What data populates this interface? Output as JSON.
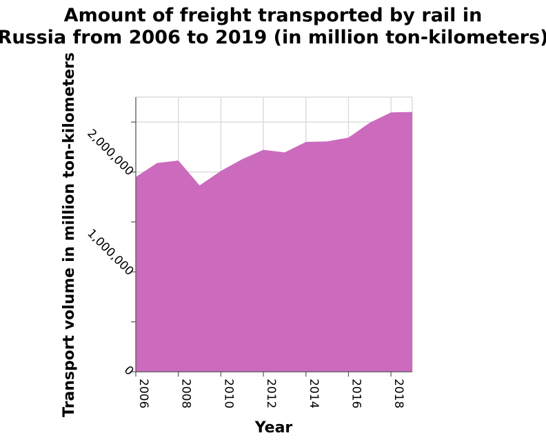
{
  "chart_data": {
    "type": "area",
    "title_lines": [
      "Amount of freight transported by rail in",
      "Russia from 2006 to 2019 (in million ton-kilometers)"
    ],
    "xlabel": "Year",
    "ylabel": "Transport volume in million ton-kilometers",
    "x": [
      2006,
      2007,
      2008,
      2009,
      2010,
      2011,
      2012,
      2013,
      2014,
      2015,
      2016,
      2017,
      2018,
      2019
    ],
    "values": [
      1950000,
      2090000,
      2115000,
      1865000,
      2011000,
      2128000,
      2222000,
      2196000,
      2301000,
      2306000,
      2344000,
      2493000,
      2597000,
      2601000
    ],
    "xlim": [
      2006,
      2019
    ],
    "ylim": [
      0,
      2750000
    ],
    "x_ticks": [
      2006,
      2008,
      2010,
      2012,
      2014,
      2016,
      2018
    ],
    "x_tick_labels": [
      "2006",
      "2008",
      "2010",
      "2012",
      "2014",
      "2016",
      "2018"
    ],
    "y_ticks": [
      0,
      500000,
      1000000,
      1500000,
      2000000,
      2500000
    ],
    "y_tick_labels": [
      "0",
      "",
      "1,000,000",
      "",
      "2,000,000",
      ""
    ],
    "fill_color": "#cc6bbd",
    "grid": true,
    "legend": "none"
  }
}
